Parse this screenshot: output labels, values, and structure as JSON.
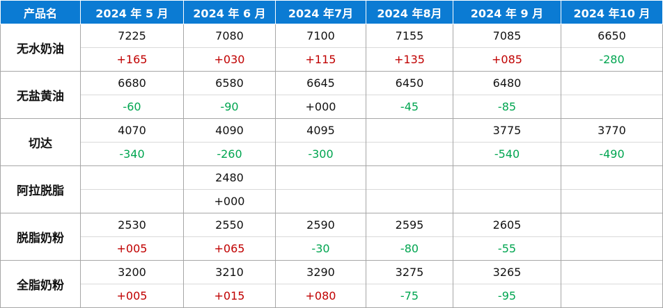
{
  "table": {
    "header": [
      "产品名",
      "2024 年 5 月",
      "2024 年 6 月",
      "2024 年7月",
      "2024 年8月",
      "2024 年 9 月",
      "2024 年10 月"
    ],
    "rows": [
      {
        "name": "无水奶油",
        "prices": [
          7225,
          7080,
          7100,
          7155,
          7085,
          6650
        ],
        "changes": [
          "+165",
          "+030",
          "+115",
          "+135",
          "+085",
          "-280"
        ]
      },
      {
        "name": "无盐黄油",
        "prices": [
          6680,
          6580,
          6645,
          6450,
          6480,
          null
        ],
        "changes": [
          "-60",
          "-90",
          "+000",
          "-45",
          "-85",
          null
        ]
      },
      {
        "name": "切达",
        "prices": [
          4070,
          4090,
          4095,
          null,
          3775,
          3770
        ],
        "changes": [
          "-340",
          "-260",
          "-300",
          null,
          "-540",
          "-490"
        ]
      },
      {
        "name": "阿拉脱脂",
        "prices": [
          null,
          2480,
          null,
          null,
          null,
          null
        ],
        "changes": [
          null,
          "+000",
          null,
          null,
          null,
          null
        ]
      },
      {
        "name": "脱脂奶粉",
        "prices": [
          2530,
          2550,
          2590,
          2595,
          2605,
          null
        ],
        "changes": [
          "+005",
          "+065",
          "-30",
          "-80",
          "-55",
          null
        ]
      },
      {
        "name": "全脂奶粉",
        "prices": [
          3200,
          3210,
          3290,
          3275,
          3265,
          null
        ],
        "changes": [
          "+005",
          "+015",
          "+080",
          "-75",
          "-95",
          null
        ]
      }
    ]
  }
}
